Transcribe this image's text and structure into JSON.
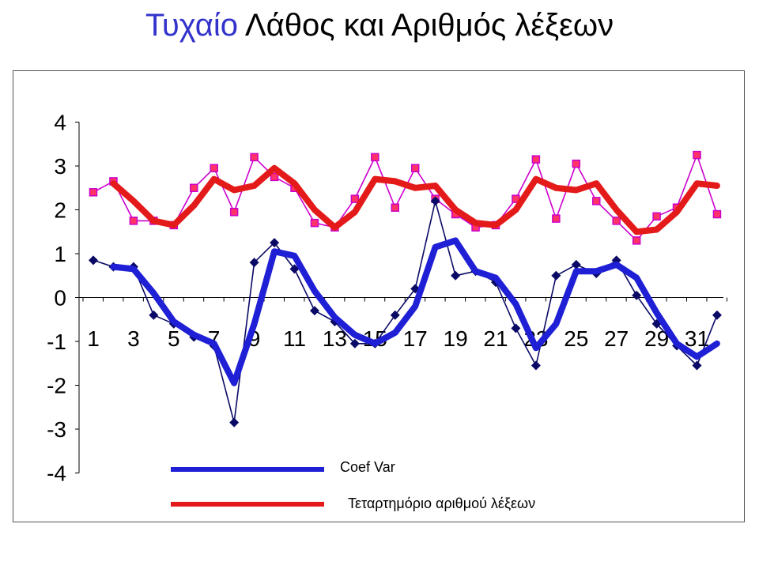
{
  "title": {
    "part1": "Τυχαίο",
    "part2": "Λάθος και Αριθμός λέξεων"
  },
  "chart_data": {
    "type": "line",
    "title": "Τυχαίο Λάθος και Αριθμός λέξεων",
    "x": [
      1,
      2,
      3,
      4,
      5,
      6,
      7,
      8,
      9,
      10,
      11,
      12,
      13,
      14,
      15,
      16,
      17,
      18,
      19,
      20,
      21,
      22,
      23,
      24,
      25,
      26,
      27,
      28,
      29,
      30,
      31,
      32
    ],
    "xtick_labels": [
      "1",
      "3",
      "5",
      "7",
      "9",
      "11",
      "13",
      "15",
      "17",
      "19",
      "21",
      "23",
      "25",
      "27",
      "29",
      "31"
    ],
    "ylim": [
      -4,
      4
    ],
    "yticks": [
      "4",
      "3",
      "2",
      "1",
      "0",
      "-1",
      "-2",
      "-3",
      "-4"
    ],
    "legend_position": "bottom",
    "series": [
      {
        "name": "Coef Var",
        "color": "#1f1fd6",
        "style": "bold",
        "values": [
          null,
          0.7,
          0.65,
          0.1,
          -0.55,
          -0.85,
          -1.05,
          -1.95,
          -0.6,
          1.05,
          0.95,
          0.15,
          -0.45,
          -0.85,
          -1.05,
          -0.8,
          -0.2,
          1.15,
          1.3,
          0.6,
          0.45,
          -0.15,
          -1.15,
          -0.6,
          0.6,
          0.6,
          0.75,
          0.45,
          -0.35,
          -1.05,
          -1.35,
          -1.05
        ]
      },
      {
        "name": "Τεταρτημόριο αριθμού λέξεων",
        "color": "#e41a1a",
        "style": "bold",
        "values": [
          null,
          2.6,
          2.2,
          1.75,
          1.65,
          2.1,
          2.7,
          2.45,
          2.55,
          2.95,
          2.6,
          2.0,
          1.6,
          1.95,
          2.7,
          2.65,
          2.5,
          2.55,
          2.0,
          1.7,
          1.65,
          2.0,
          2.7,
          2.5,
          2.45,
          2.6,
          2.0,
          1.5,
          1.55,
          1.95,
          2.6,
          2.55
        ]
      },
      {
        "color": "#0a0a66",
        "style": "thin-diamond",
        "values": [
          0.85,
          0.7,
          0.7,
          -0.4,
          -0.6,
          -0.9,
          -1.1,
          -2.85,
          0.8,
          1.25,
          0.65,
          -0.3,
          -0.55,
          -1.05,
          -1.05,
          -0.4,
          0.2,
          2.2,
          0.5,
          0.6,
          0.35,
          -0.7,
          -1.55,
          0.5,
          0.75,
          0.55,
          0.85,
          0.05,
          -0.6,
          -1.1,
          -1.55,
          -0.4
        ]
      },
      {
        "color": "#cc00cc",
        "marker_color": "#ff3366",
        "style": "thin-square",
        "values": [
          2.4,
          2.65,
          1.75,
          1.75,
          1.65,
          2.5,
          2.95,
          1.95,
          3.2,
          2.75,
          2.5,
          1.7,
          1.6,
          2.25,
          3.2,
          2.05,
          2.95,
          2.25,
          1.9,
          1.6,
          1.65,
          2.25,
          3.15,
          1.8,
          3.05,
          2.2,
          1.75,
          1.3,
          1.85,
          2.05,
          3.25,
          1.9
        ]
      }
    ]
  }
}
